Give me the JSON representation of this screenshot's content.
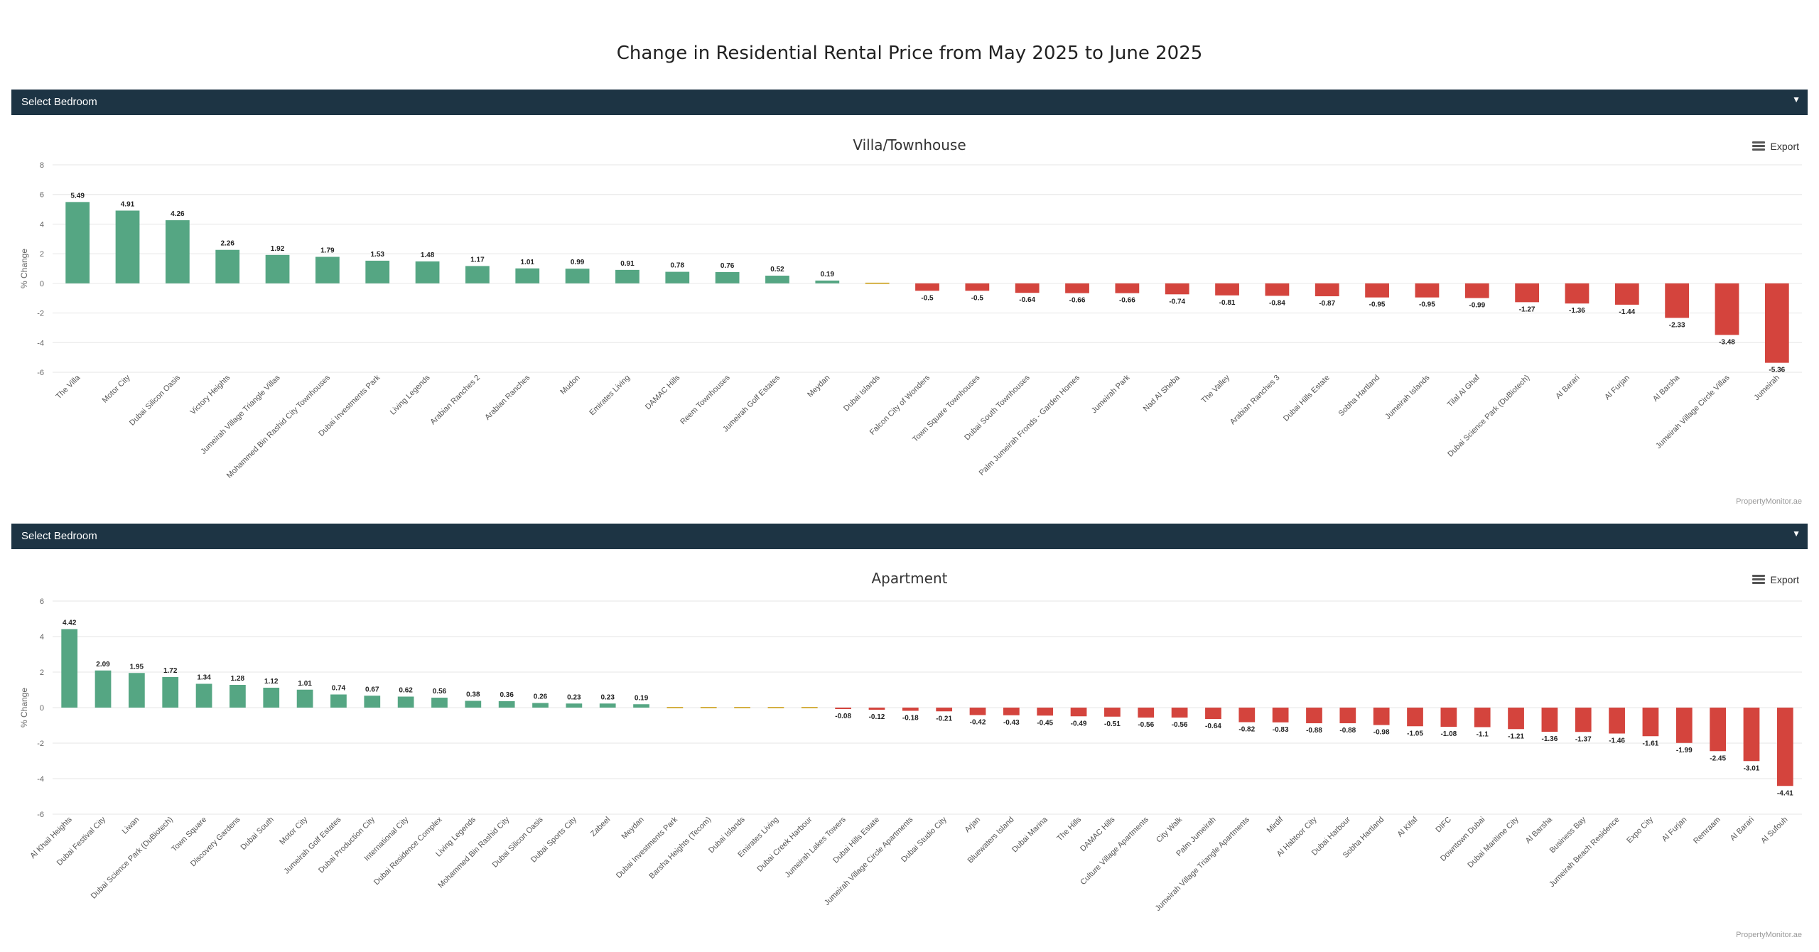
{
  "page": {
    "title": "Change in Residential Rental Price from May 2025 to June 2025"
  },
  "selects": [
    {
      "label": "Select Bedroom",
      "caret": "▼"
    },
    {
      "label": "Select Bedroom",
      "caret": "▼"
    }
  ],
  "export_label": "Export",
  "credits": "PropertyMonitor.ae",
  "colors": {
    "positive": "#55a683",
    "negative": "#d4443d",
    "zero": "#d4b043",
    "grid": "#e6e6e6",
    "header_bar": "#1d3444"
  },
  "chart_data": [
    {
      "type": "bar",
      "title": "Villa/Townhouse",
      "xlabel": "",
      "ylabel": "% Change",
      "ylim": [
        -6,
        8
      ],
      "yticks": [
        -6,
        -4,
        -2,
        0,
        2,
        4,
        6,
        8
      ],
      "categories": [
        "The Villa",
        "Motor City",
        "Dubai Silicon Oasis",
        "Victory Heights",
        "Jumeirah Village Triangle Villas",
        "Mohammed Bin Rashid City Townhouses",
        "Dubai Investments Park",
        "Living Legends",
        "Arabian Ranches 2",
        "Arabian Ranches",
        "Mudon",
        "Emirates Living",
        "DAMAC Hills",
        "Reem Townhouses",
        "Jumeirah Golf Estates",
        "Meydan",
        "Dubai Islands",
        "Falcon City of Wonders",
        "Town Square Townhouses",
        "Dubai South Townhouses",
        "Palm Jumeirah Fronds - Garden Homes",
        "Jumeirah Park",
        "Nad Al Sheba",
        "The Valley",
        "Arabian Ranches 3",
        "Dubai Hills Estate",
        "Sobha Hartland",
        "Jumeirah Islands",
        "Tilal Al Ghaf",
        "Dubai Science Park (DuBiotech)",
        "Al Barari",
        "Al Furjan",
        "Al Barsha",
        "Jumeirah Village Circle Villas",
        "Jumeirah"
      ],
      "values": [
        5.49,
        4.91,
        4.26,
        2.26,
        1.92,
        1.79,
        1.53,
        1.48,
        1.17,
        1.01,
        0.99,
        0.91,
        0.78,
        0.76,
        0.52,
        0.19,
        0,
        -0.5,
        -0.5,
        -0.64,
        -0.66,
        -0.66,
        -0.74,
        -0.81,
        -0.84,
        -0.87,
        -0.95,
        -0.95,
        -0.99,
        -1.27,
        -1.36,
        -1.44,
        -2.33,
        -3.48,
        -5.36
      ],
      "data_labels": [
        "5.49",
        "4.91",
        "4.26",
        "2.26",
        "1.92",
        "1.79",
        "1.53",
        "1.48",
        "1.17",
        "1.01",
        "0.99",
        "0.91",
        "0.78",
        "0.76",
        "0.52",
        "0.19",
        "",
        "-0.5",
        "-0.5",
        "-0.64",
        "-0.66",
        "-0.66",
        "-0.74",
        "-0.81",
        "-0.84",
        "-0.87",
        "-0.95",
        "-0.95",
        "-0.99",
        "-1.27",
        "-1.36",
        "-1.44",
        "-2.33",
        "-3.48",
        "-5.36"
      ]
    },
    {
      "type": "bar",
      "title": "Apartment",
      "xlabel": "",
      "ylabel": "% Change",
      "ylim": [
        -6,
        6
      ],
      "yticks": [
        -6,
        -4,
        -2,
        0,
        2,
        4,
        6
      ],
      "categories": [
        "Al Khail Heights",
        "Dubai Festival City",
        "Liwan",
        "Dubai Science Park (DuBiotech)",
        "Town Square",
        "Discovery Gardens",
        "Dubai South",
        "Motor City",
        "Jumeirah Golf Estates",
        "Dubai Production City",
        "International City",
        "Dubai Residence Complex",
        "Living Legends",
        "Mohammed Bin Rashid City",
        "Dubai Silicon Oasis",
        "Dubai Sports City",
        "Zabeel",
        "Meydan",
        "Dubai Investments Park",
        "Barsha Heights (Tecom)",
        "Dubai Islands",
        "Emirates Living",
        "Dubai Creek Harbour",
        "Jumeirah Lakes Towers",
        "Dubai Hills Estate",
        "Jumeirah Village Circle Apartments",
        "Dubai Studio City",
        "Arjan",
        "Bluewaters Island",
        "Dubai Marina",
        "The Hills",
        "DAMAC Hills",
        "Culture Village Apartments",
        "City Walk",
        "Palm Jumeirah",
        "Jumeirah Village Triangle Apartments",
        "Mirdif",
        "Al Habtoor City",
        "Dubai Harbour",
        "Sobha Hartland",
        "Al Kifaf",
        "DIFC",
        "Downtown Dubai",
        "Dubai Maritime City",
        "Al Barsha",
        "Business Bay",
        "Jumeirah Beach Residence",
        "Expo City",
        "Al Furjan",
        "Remraam",
        "Al Barari",
        "Al Sufouh"
      ],
      "values": [
        4.42,
        2.09,
        1.95,
        1.72,
        1.34,
        1.28,
        1.12,
        1.01,
        0.74,
        0.67,
        0.62,
        0.56,
        0.38,
        0.36,
        0.26,
        0.23,
        0.23,
        0.19,
        0,
        0,
        0,
        0,
        0,
        -0.08,
        -0.12,
        -0.18,
        -0.21,
        -0.42,
        -0.43,
        -0.45,
        -0.49,
        -0.51,
        -0.56,
        -0.56,
        -0.64,
        -0.82,
        -0.83,
        -0.88,
        -0.88,
        -0.98,
        -1.05,
        -1.08,
        -1.1,
        -1.21,
        -1.36,
        -1.37,
        -1.46,
        -1.61,
        -1.99,
        -2.45,
        -3.01,
        -4.41
      ],
      "data_labels": [
        "4.42",
        "2.09",
        "1.95",
        "1.72",
        "1.34",
        "1.28",
        "1.12",
        "1.01",
        "0.74",
        "0.67",
        "0.62",
        "0.56",
        "0.38",
        "0.36",
        "0.26",
        "0.23",
        "0.23",
        "0.19",
        "",
        "",
        "",
        "",
        "",
        "-0.08",
        "-0.12",
        "-0.18",
        "-0.21",
        "-0.42",
        "-0.43",
        "-0.45",
        "-0.49",
        "-0.51",
        "-0.56",
        "-0.56",
        "-0.64",
        "-0.82",
        "-0.83",
        "-0.88",
        "-0.88",
        "-0.98",
        "-1.05",
        "-1.08",
        "-1.1",
        "-1.21",
        "-1.36",
        "-1.37",
        "-1.46",
        "-1.61",
        "-1.99",
        "-2.45",
        "-3.01",
        "-4.41"
      ]
    }
  ]
}
